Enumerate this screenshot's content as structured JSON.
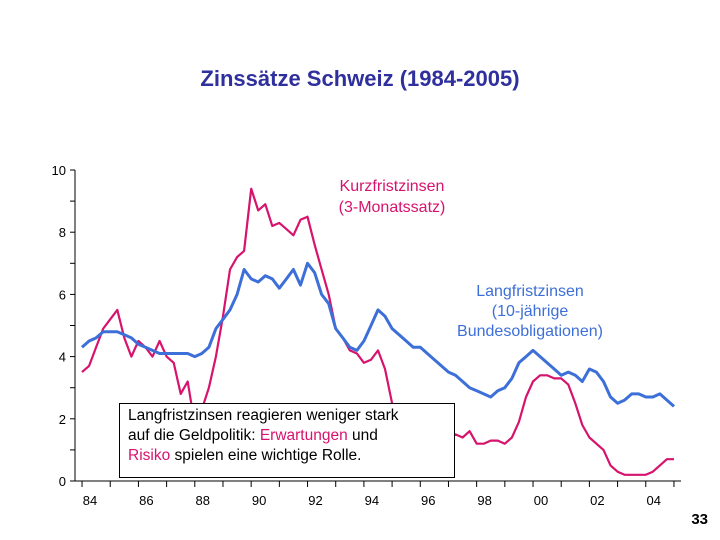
{
  "colors": {
    "title": "#2f2f9e",
    "short_rate": "#d6136d",
    "long_rate": "#3d6fd8",
    "axis": "#000000"
  },
  "chart_data": {
    "type": "line",
    "title": "Zinssätze Schweiz (1984-2005)",
    "xlabel": "",
    "ylabel": "",
    "xlim": [
      1983.75,
      2005.25
    ],
    "ylim": [
      0,
      10
    ],
    "y_ticks": [
      "0",
      "2",
      "4",
      "6",
      "8",
      "10"
    ],
    "x_ticks": [
      {
        "label": "84",
        "year": 1984.0
      },
      {
        "label": "86",
        "year": 1986.0
      },
      {
        "label": "88",
        "year": 1988.0
      },
      {
        "label": "90",
        "year": 1990.0
      },
      {
        "label": "92",
        "year": 1992.0
      },
      {
        "label": "94",
        "year": 1994.0
      },
      {
        "label": "96",
        "year": 1996.0
      },
      {
        "label": "98",
        "year": 1998.0
      },
      {
        "label": "00",
        "year": 2000.0
      },
      {
        "label": "02",
        "year": 2002.0
      },
      {
        "label": "04",
        "year": 2004.0
      }
    ],
    "series": [
      {
        "name": "Kurzfristzinsen (3-Monatssatz)",
        "x": [
          1984.0,
          1984.25,
          1984.5,
          1984.75,
          1985.0,
          1985.25,
          1985.5,
          1985.75,
          1986.0,
          1986.25,
          1986.5,
          1986.75,
          1987.0,
          1987.25,
          1987.5,
          1987.75,
          1988.0,
          1988.25,
          1988.5,
          1988.75,
          1989.0,
          1989.25,
          1989.5,
          1989.75,
          1990.0,
          1990.25,
          1990.5,
          1990.75,
          1991.0,
          1991.25,
          1991.5,
          1991.75,
          1992.0,
          1992.25,
          1992.5,
          1992.75,
          1993.0,
          1993.25,
          1993.5,
          1993.75,
          1994.0,
          1994.25,
          1994.5,
          1994.75,
          1995.0,
          1995.25,
          1995.5,
          1995.75,
          1996.0,
          1996.25,
          1996.5,
          1996.75,
          1997.0,
          1997.25,
          1997.5,
          1997.75,
          1998.0,
          1998.25,
          1998.5,
          1998.75,
          1999.0,
          1999.25,
          1999.5,
          1999.75,
          2000.0,
          2000.25,
          2000.5,
          2000.75,
          2001.0,
          2001.25,
          2001.5,
          2001.75,
          2002.0,
          2002.25,
          2002.5,
          2002.75,
          2003.0,
          2003.25,
          2003.5,
          2003.75,
          2004.0,
          2004.25,
          2004.5,
          2004.75,
          2005.0
        ],
        "values": [
          3.5,
          3.7,
          4.3,
          4.9,
          5.2,
          5.5,
          4.6,
          4.0,
          4.5,
          4.3,
          4.0,
          4.5,
          4.0,
          3.8,
          2.8,
          3.2,
          1.8,
          2.3,
          3.0,
          4.0,
          5.3,
          6.8,
          7.2,
          7.4,
          9.4,
          8.7,
          8.9,
          8.2,
          8.3,
          8.1,
          7.9,
          8.4,
          8.5,
          7.6,
          6.8,
          6.0,
          4.9,
          4.6,
          4.2,
          4.1,
          3.8,
          3.9,
          4.2,
          3.6,
          2.5,
          2.2,
          1.6,
          1.9,
          1.8,
          1.7,
          1.5,
          1.3,
          1.3,
          1.5,
          1.4,
          1.6,
          1.2,
          1.2,
          1.3,
          1.3,
          1.2,
          1.4,
          1.9,
          2.7,
          3.2,
          3.4,
          3.4,
          3.3,
          3.3,
          3.1,
          2.5,
          1.8,
          1.4,
          1.2,
          1.0,
          0.5,
          0.3,
          0.2,
          0.2,
          0.2,
          0.2,
          0.3,
          0.5,
          0.7,
          0.7
        ]
      },
      {
        "name": "Langfristzinsen (10-jährige Bundesobligationen)",
        "x": [
          1984.0,
          1984.25,
          1984.5,
          1984.75,
          1985.0,
          1985.25,
          1985.5,
          1985.75,
          1986.0,
          1986.25,
          1986.5,
          1986.75,
          1987.0,
          1987.25,
          1987.5,
          1987.75,
          1988.0,
          1988.25,
          1988.5,
          1988.75,
          1989.0,
          1989.25,
          1989.5,
          1989.75,
          1990.0,
          1990.25,
          1990.5,
          1990.75,
          1991.0,
          1991.25,
          1991.5,
          1991.75,
          1992.0,
          1992.25,
          1992.5,
          1992.75,
          1993.0,
          1993.25,
          1993.5,
          1993.75,
          1994.0,
          1994.25,
          1994.5,
          1994.75,
          1995.0,
          1995.25,
          1995.5,
          1995.75,
          1996.0,
          1996.25,
          1996.5,
          1996.75,
          1997.0,
          1997.25,
          1997.5,
          1997.75,
          1998.0,
          1998.25,
          1998.5,
          1998.75,
          1999.0,
          1999.25,
          1999.5,
          1999.75,
          2000.0,
          2000.25,
          2000.5,
          2000.75,
          2001.0,
          2001.25,
          2001.5,
          2001.75,
          2002.0,
          2002.25,
          2002.5,
          2002.75,
          2003.0,
          2003.25,
          2003.5,
          2003.75,
          2004.0,
          2004.25,
          2004.5,
          2004.75,
          2005.0
        ],
        "values": [
          4.3,
          4.5,
          4.6,
          4.8,
          4.8,
          4.8,
          4.7,
          4.6,
          4.4,
          4.3,
          4.2,
          4.1,
          4.1,
          4.1,
          4.1,
          4.1,
          4.0,
          4.1,
          4.3,
          4.9,
          5.2,
          5.5,
          6.0,
          6.8,
          6.5,
          6.4,
          6.6,
          6.5,
          6.2,
          6.5,
          6.8,
          6.3,
          7.0,
          6.7,
          6.0,
          5.7,
          4.9,
          4.6,
          4.3,
          4.2,
          4.5,
          5.0,
          5.5,
          5.3,
          4.9,
          4.7,
          4.5,
          4.3,
          4.3,
          4.1,
          3.9,
          3.7,
          3.5,
          3.4,
          3.2,
          3.0,
          2.9,
          2.8,
          2.7,
          2.9,
          3.0,
          3.3,
          3.8,
          4.0,
          4.2,
          4.0,
          3.8,
          3.6,
          3.4,
          3.5,
          3.4,
          3.2,
          3.6,
          3.5,
          3.2,
          2.7,
          2.5,
          2.6,
          2.8,
          2.8,
          2.7,
          2.7,
          2.8,
          2.6,
          2.4
        ]
      }
    ],
    "annotations": [
      {
        "series": 0,
        "lines": [
          "Kurzfristzinsen",
          "(3-Monatssatz)"
        ]
      },
      {
        "series": 1,
        "lines": [
          "Langfristzinsen",
          "(10-jährige",
          "Bundesobligationen)"
        ]
      }
    ],
    "note": {
      "line1": "Langfristzinsen reagieren weniger stark",
      "line2_prefix": "auf die Geldpolitik: ",
      "line2_highlight": "Erwartungen",
      "line2_suffix": " und",
      "line3_highlight": "Risiko",
      "line3_suffix": " spielen eine wichtige Rolle."
    },
    "grid": false,
    "legend": "none"
  },
  "page_number": "33"
}
